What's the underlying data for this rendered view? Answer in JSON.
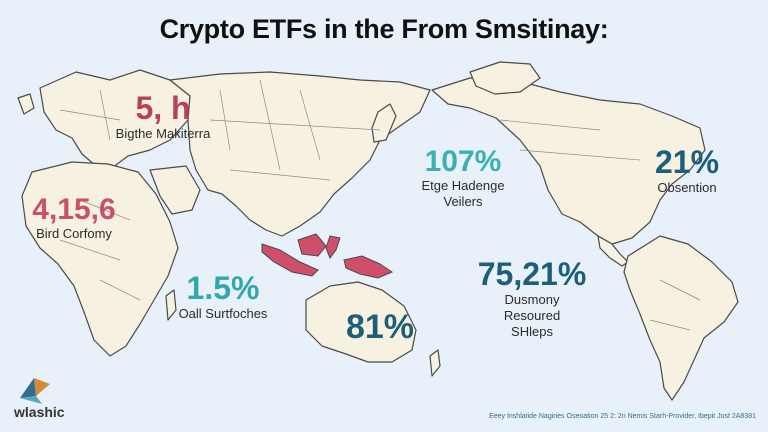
{
  "title": "Crypto ETFs in the From Smsitinay:",
  "stats": [
    {
      "value": "5, h",
      "label": "Bigthe Makiterra",
      "color": "#b8405a"
    },
    {
      "value": "4,15,6",
      "label": "Bird Corfomy",
      "color": "#c94f6d"
    },
    {
      "value": "1.5%",
      "label": "Oall Surtfoches",
      "color": "#33a7ae"
    },
    {
      "value": "107%",
      "label": "Etge Hadenge\nVeilers",
      "color": "#3bb0b3"
    },
    {
      "value": "21%",
      "label": "Obsention",
      "color": "#1c5f7a"
    },
    {
      "value": "75,21%",
      "label": "Dusmony\nResoured\nSHleps",
      "color": "#1d5f7b"
    },
    {
      "value": "81%",
      "label": "",
      "color": "#1d5f7b"
    }
  ],
  "logo": {
    "text": "wlashic",
    "icon": "folded-paper-logo"
  },
  "footer": "Eeey Inshlatide Nagiries    Oseoation 25 2: 2n Nemis Starh-Provider,  Ibepit Just 2A8381",
  "colors": {
    "ocean": "#e8f1f9",
    "land": "#f7f1e1",
    "highlight": "#cf4f6b"
  }
}
